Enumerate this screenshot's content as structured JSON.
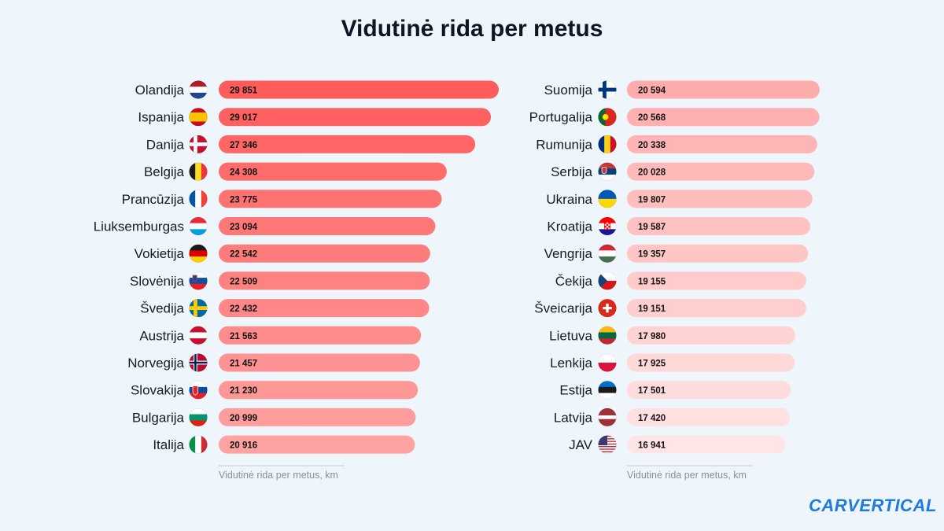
{
  "title": "Vidutinė rida per metus",
  "logo": "CARVERTICAL",
  "chart_data": [
    {
      "type": "bar",
      "orientation": "horizontal",
      "xlabel": "Vidutinė rida per metus, km",
      "categories": [
        "Olandija",
        "Ispanija",
        "Danija",
        "Belgija",
        "Prancūzija",
        "Liuksemburgas",
        "Vokietija",
        "Slovėnija",
        "Švedija",
        "Austrija",
        "Norvegija",
        "Slovakija",
        "Bulgarija",
        "Italija"
      ],
      "value_labels": [
        "29 851",
        "29 017",
        "27 346",
        "24 308",
        "23 775",
        "23 094",
        "22 542",
        "22 509",
        "22 432",
        "21 563",
        "21 457",
        "21 230",
        "20 999",
        "20 916"
      ],
      "values": [
        29851,
        29017,
        27346,
        24308,
        23775,
        23094,
        22542,
        22509,
        22432,
        21563,
        21457,
        21230,
        20999,
        20916
      ],
      "flags": [
        "nl",
        "es",
        "dk",
        "be",
        "fr",
        "lu",
        "de",
        "si",
        "se",
        "at",
        "no",
        "sk",
        "bg",
        "it"
      ],
      "color_start": "#ff5c5c",
      "color_end": "#ffa2a2"
    },
    {
      "type": "bar",
      "orientation": "horizontal",
      "xlabel": "Vidutinė rida per metus, km",
      "categories": [
        "Suomija",
        "Portugalija",
        "Rumunija",
        "Serbija",
        "Ukraina",
        "Kroatija",
        "Vengrija",
        "Čekija",
        "Šveicarija",
        "Lietuva",
        "Lenkija",
        "Estija",
        "Latvija",
        "JAV"
      ],
      "value_labels": [
        "20 594",
        "20 568",
        "20 338",
        "20 028",
        "19 807",
        "19 587",
        "19 357",
        "19 155",
        "19 151",
        "17 980",
        "17 925",
        "17 501",
        "17 420",
        "16 941"
      ],
      "values": [
        20594,
        20568,
        20338,
        20028,
        19807,
        19587,
        19357,
        19155,
        19151,
        17980,
        17925,
        17501,
        17420,
        16941
      ],
      "flags": [
        "fi",
        "pt",
        "ro",
        "rs",
        "ua",
        "hr",
        "hu",
        "cz",
        "ch",
        "lt",
        "pl",
        "ee",
        "lv",
        "us"
      ],
      "color_start": "#ffacac",
      "color_end": "#ffe5e5"
    }
  ]
}
